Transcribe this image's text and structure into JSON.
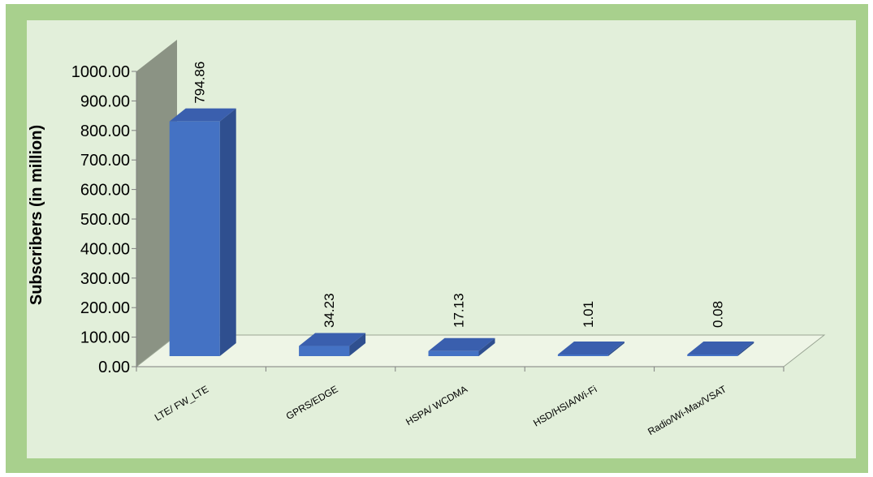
{
  "chart_data": {
    "type": "bar",
    "categories": [
      "LTE/ FW_LTE",
      "GPRS/EDGE",
      "HSPA/ WCDMA",
      "HSD/HSIA/Wi-Fi",
      "Radio/Wi-Max/VSAT"
    ],
    "values": [
      794.86,
      34.23,
      17.13,
      1.01,
      0.08
    ],
    "value_labels": [
      "794.86",
      "34.23",
      "17.13",
      "1.01",
      "0.08"
    ],
    "title": "",
    "xlabel": "",
    "ylabel": "Subscribers (in million)",
    "ylim": [
      0,
      1000
    ],
    "y_ticks": [
      "0.00",
      "100.00",
      "200.00",
      "300.00",
      "400.00",
      "500.00",
      "600.00",
      "700.00",
      "800.00",
      "900.00",
      "1000.00"
    ],
    "grid": false,
    "legend": "none",
    "style": "3d-column",
    "colors": {
      "bar_front": "#4472c4",
      "bar_side": "#2f4f8f",
      "bar_top": "#3a5fae",
      "back_wall": "#8b9384",
      "floor": "#eef5e6",
      "panel": "#e2efda",
      "frame": "#a8d08d"
    }
  }
}
